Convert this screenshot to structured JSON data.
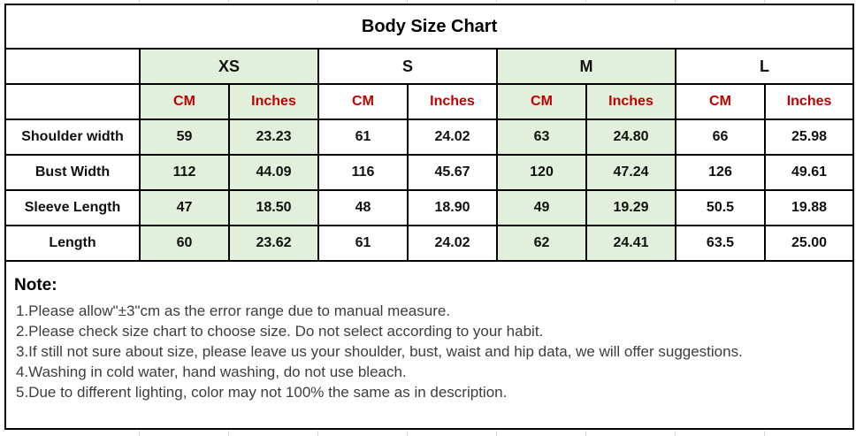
{
  "title": "Body Size Chart",
  "table": {
    "sizes": [
      {
        "label": "XS",
        "highlighted": true
      },
      {
        "label": "S",
        "highlighted": false
      },
      {
        "label": "M",
        "highlighted": true
      },
      {
        "label": "L",
        "highlighted": false
      }
    ],
    "unit_headers": [
      "CM",
      "Inches"
    ],
    "rows": [
      {
        "label": "Shoulder width",
        "values": [
          "59",
          "23.23",
          "61",
          "24.02",
          "63",
          "24.80",
          "66",
          "25.98"
        ]
      },
      {
        "label": "Bust Width",
        "values": [
          "112",
          "44.09",
          "116",
          "45.67",
          "120",
          "47.24",
          "126",
          "49.61"
        ]
      },
      {
        "label": "Sleeve Length",
        "values": [
          "47",
          "18.50",
          "48",
          "18.90",
          "49",
          "19.29",
          "50.5",
          "19.88"
        ]
      },
      {
        "label": "Length",
        "values": [
          "60",
          "23.62",
          "61",
          "24.02",
          "62",
          "24.41",
          "63.5",
          "25.00"
        ]
      }
    ]
  },
  "note": {
    "heading": "Note:",
    "lines": [
      "1.Please allow\"±3\"cm as the error range due to manual measure.",
      "2.Please check size chart to choose size. Do not select according to your habit.",
      "3.If still not sure about size, please leave us your shoulder, bust, waist and hip data, we will offer suggestions.",
      "4.Washing in cold water, hand washing, do not use bleach.",
      "5.Due to different lighting, color may not 100% the same as in description."
    ]
  },
  "colors": {
    "highlight_green": "#e2efda",
    "header_red": "#c00000",
    "grid_border": "#000000"
  }
}
